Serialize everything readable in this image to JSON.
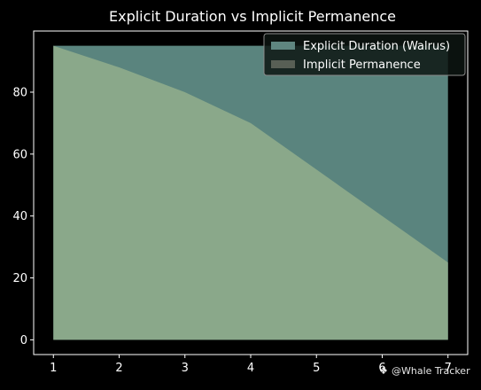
{
  "chart_data": {
    "type": "area",
    "title": "Explicit Duration vs Implicit Permanence",
    "xlabel": "",
    "ylabel": "",
    "x": [
      1,
      2,
      3,
      4,
      5,
      6,
      7
    ],
    "xticks": [
      1,
      2,
      3,
      4,
      5,
      6,
      7
    ],
    "yticks": [
      0,
      20,
      40,
      60,
      80
    ],
    "xlim": [
      0.7,
      7.3
    ],
    "ylim": [
      -4.75,
      99.75
    ],
    "grid": false,
    "legend_position": "top-right",
    "stacked": false,
    "series": [
      {
        "name": "Explicit Duration (Walrus)",
        "values": [
          95,
          95,
          95,
          95,
          95,
          95,
          95
        ],
        "color": "#5a847e"
      },
      {
        "name": "Implicit Permanence",
        "values": [
          95,
          88,
          80,
          70,
          55,
          40,
          25
        ],
        "color": "#8aa88a"
      }
    ],
    "legend_swatch_colors": [
      "#5f8680",
      "#585f55"
    ]
  },
  "watermark": {
    "icon": "whale-icon",
    "text": "@Whale Tracker"
  },
  "colors": {
    "background": "#000000",
    "axes_frame": "#ffffff",
    "legend_background": "#0d1512",
    "legend_border": "#8a8a8a"
  }
}
